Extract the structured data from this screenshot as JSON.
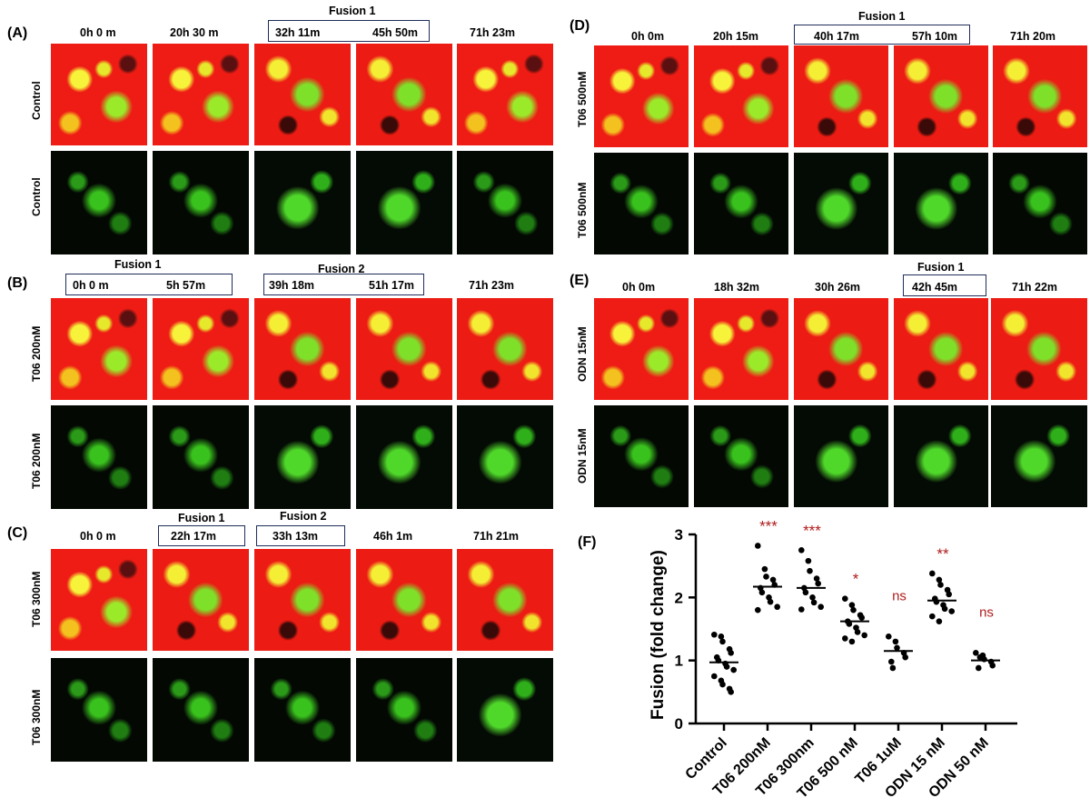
{
  "panels": {
    "A": {
      "label": "(A)",
      "times": [
        "0h 0 m",
        "20h 30 m",
        "32h 11m",
        "45h 50m",
        "71h 23m"
      ],
      "fusion": [
        "Fusion 1"
      ],
      "rows": [
        "Control",
        "Control"
      ]
    },
    "B": {
      "label": "(B)",
      "times": [
        "0h 0 m",
        "5h 57m",
        "39h 18m",
        "51h 17m",
        "71h 23m"
      ],
      "fusion": [
        "Fusion 1",
        "Fusion 2"
      ],
      "rows": [
        "T06 200nM",
        "T06 200nM"
      ]
    },
    "C": {
      "label": "(C)",
      "times": [
        "0h 0 m",
        "22h 17m",
        "33h 13m",
        "46h 1m",
        "71h 21m"
      ],
      "fusion": [
        "Fusion 1",
        "Fusion 2"
      ],
      "rows": [
        "T06 300nM",
        "T06 300nM"
      ]
    },
    "D": {
      "label": "(D)",
      "times": [
        "0h 0m",
        "20h 15m",
        "40h 17m",
        "57h 10m",
        "71h 20m"
      ],
      "fusion": [
        "Fusion 1"
      ],
      "rows": [
        "T06 500nM",
        "T06 500nM"
      ]
    },
    "E": {
      "label": "(E)",
      "times": [
        "0h 0m",
        "18h 32m",
        "30h 26m",
        "42h 45m",
        "71h 22m"
      ],
      "fusion": [
        "Fusion 1"
      ],
      "rows": [
        "ODN 15nM",
        "ODN 15nM"
      ]
    },
    "F": {
      "label": "(F)"
    }
  },
  "chart_data": {
    "type": "scatter",
    "ylabel": "Fusion (fold change)",
    "xlabel": "",
    "ylim": [
      0,
      3
    ],
    "yticks": [
      "0",
      "1",
      "2",
      "3"
    ],
    "categories": [
      "Control",
      "T06 200nM",
      "T06 300nm",
      "T06 500 nM",
      "T06 1uM",
      "ODN 15 nM",
      "ODN 50 nM"
    ],
    "means": [
      0.97,
      2.17,
      2.15,
      1.62,
      1.15,
      1.95,
      1.0
    ],
    "significance": [
      "",
      "***",
      "***",
      "*",
      "ns",
      "**",
      "ns"
    ],
    "significance_colors": [
      "#b01c1c",
      "#b01c1c",
      "#b01c1c",
      "#b01c1c",
      "#b01c1c",
      "#b01c1c",
      "#b01c1c"
    ],
    "points": [
      [
        1.41,
        1.38,
        1.3,
        1.18,
        1.12,
        1.05,
        1.0,
        0.95,
        0.9,
        0.85,
        0.75,
        0.68,
        0.62,
        0.55,
        0.5
      ],
      [
        2.82,
        2.45,
        2.33,
        2.28,
        2.2,
        2.15,
        2.08,
        2.0,
        1.93,
        1.85,
        1.8
      ],
      [
        2.75,
        2.58,
        2.42,
        2.3,
        2.22,
        2.15,
        2.08,
        2.0,
        1.92,
        1.85,
        1.81
      ],
      [
        1.98,
        1.88,
        1.8,
        1.72,
        1.68,
        1.62,
        1.58,
        1.52,
        1.45,
        1.4,
        1.35,
        1.3
      ],
      [
        1.38,
        1.3,
        1.2,
        1.12,
        1.05,
        0.98,
        0.88
      ],
      [
        2.38,
        2.28,
        2.2,
        2.12,
        2.05,
        1.98,
        1.93,
        1.88,
        1.82,
        1.78,
        1.7,
        1.62
      ],
      [
        1.12,
        1.08,
        1.02,
        0.98,
        0.92,
        0.88,
        1.05
      ]
    ]
  }
}
